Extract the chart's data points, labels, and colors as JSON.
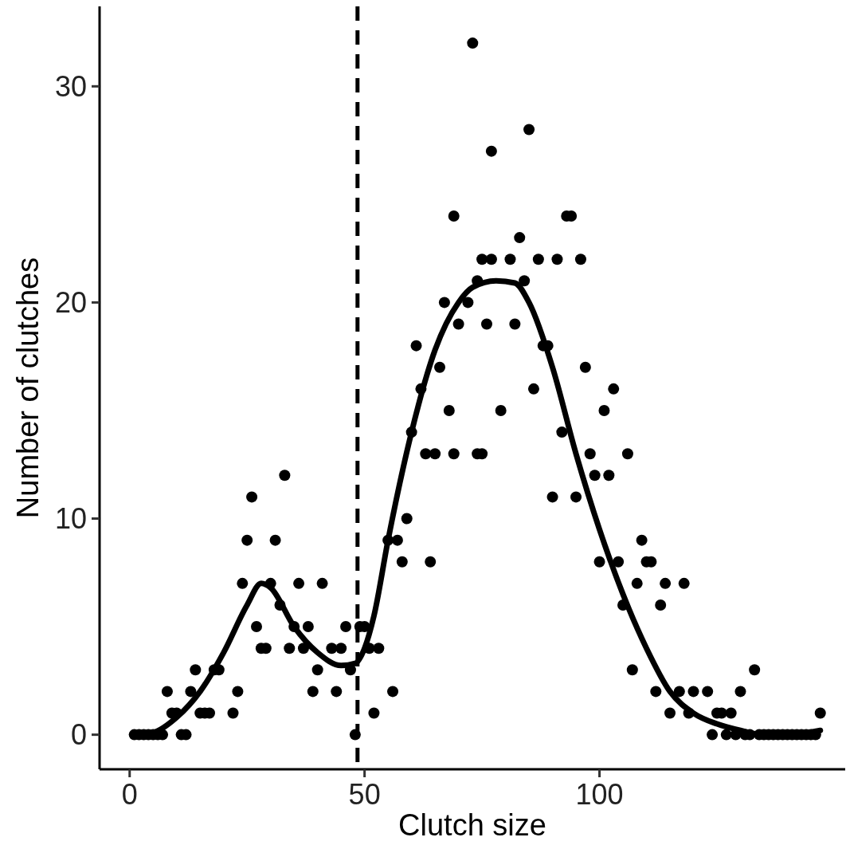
{
  "chart_data": {
    "type": "scatter",
    "xlabel": "Clutch size",
    "ylabel": "Number of clutches",
    "xlim": [
      -6.4,
      152.3
    ],
    "ylim": [
      -1.6,
      33.7
    ],
    "xticks": [
      0,
      50,
      100
    ],
    "yticks": [
      0,
      10,
      20,
      30
    ],
    "ref_lines": [
      {
        "axis": "x",
        "value": 48.5,
        "line_style": "dashed",
        "color": "#000000"
      }
    ],
    "series": [
      {
        "marker": "circle",
        "color": "#000000",
        "x": [
          1,
          2,
          3,
          4,
          5,
          6,
          7,
          8,
          9,
          10,
          11,
          12,
          13,
          14,
          15,
          16,
          17,
          18,
          19,
          22,
          23,
          24,
          25,
          26,
          27,
          28,
          29,
          30,
          31,
          32,
          33,
          34,
          35,
          36,
          37,
          38,
          39,
          40,
          41,
          43,
          44,
          45,
          46,
          47,
          48,
          49,
          50,
          51,
          53,
          52,
          55,
          57,
          56,
          58,
          59,
          60,
          61,
          62,
          63,
          64,
          65,
          66,
          67,
          68,
          69,
          69,
          70,
          72,
          73,
          74,
          74,
          75,
          75,
          76,
          77,
          77,
          79,
          81,
          82,
          83,
          84,
          85,
          86,
          87,
          88,
          89,
          90,
          91,
          92,
          93,
          94,
          95,
          96,
          97,
          98,
          99,
          100,
          101,
          102,
          103,
          104,
          105,
          106,
          107,
          108,
          109,
          110,
          111,
          112,
          113,
          114,
          115,
          117,
          118,
          119,
          120,
          123,
          124,
          125,
          126,
          127,
          128,
          129,
          130,
          131,
          132,
          133,
          134,
          135,
          136,
          137,
          138,
          139,
          140,
          141,
          142,
          143,
          144,
          145,
          146,
          147
        ],
        "values": [
          0,
          0,
          0,
          0,
          0,
          0,
          0,
          2,
          1,
          1,
          0,
          0,
          2,
          3,
          1,
          1,
          1,
          3,
          3,
          1,
          2,
          7,
          9,
          11,
          5,
          4,
          4,
          7,
          9,
          6,
          12,
          4,
          5,
          7,
          4,
          5,
          2,
          3,
          7,
          4,
          2,
          4,
          5,
          3,
          0,
          5,
          5,
          4,
          4,
          1,
          9,
          9,
          2,
          8,
          10,
          14,
          18,
          16,
          13,
          8,
          13,
          17,
          20,
          15,
          13,
          24,
          19,
          20,
          32,
          13,
          21,
          13,
          22,
          19,
          22,
          27,
          15,
          22,
          19,
          23,
          21,
          28,
          16,
          22,
          18,
          18,
          11,
          22,
          14,
          24,
          24,
          11,
          22,
          17,
          13,
          12,
          8,
          15,
          12,
          16,
          8,
          6,
          13,
          3,
          7,
          9,
          8,
          8,
          2,
          6,
          7,
          1,
          2,
          7,
          1,
          2,
          2,
          0,
          1,
          1,
          0,
          1,
          0,
          2,
          0,
          0,
          3,
          0,
          0,
          0,
          0,
          0,
          0,
          0,
          0,
          0,
          0,
          0,
          0,
          0,
          1
        ]
      },
      {
        "type": "line",
        "marker": "none",
        "color": "#000000",
        "x": [
          1,
          5,
          10,
          15,
          20,
          25,
          28,
          30,
          35,
          40,
          45,
          48,
          50,
          52,
          55,
          60,
          65,
          70,
          73,
          78,
          82,
          85,
          90,
          95,
          100,
          105,
          110,
          115,
          120,
          125,
          130,
          135,
          140,
          147
        ],
        "values": [
          0,
          0.1,
          0.8,
          2,
          3.8,
          6,
          7,
          6.8,
          5,
          3.8,
          3.2,
          3.3,
          4,
          5.5,
          9,
          14,
          17.8,
          20,
          20.7,
          21,
          20.9,
          20,
          17,
          13,
          9.5,
          6.5,
          4,
          2,
          1,
          0.5,
          0.2,
          0,
          0,
          0.2
        ]
      }
    ]
  }
}
